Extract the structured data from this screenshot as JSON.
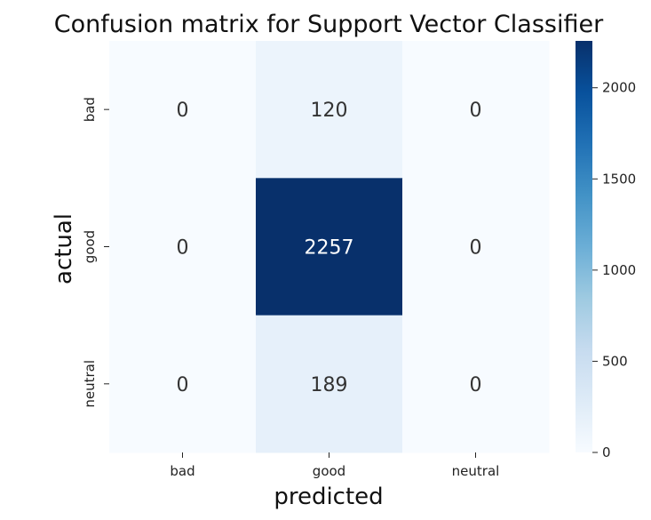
{
  "chart_data": {
    "type": "heatmap",
    "title": "Confusion matrix for Support Vector Classifier",
    "xlabel": "predicted",
    "ylabel": "actual",
    "x_categories": [
      "bad",
      "good",
      "neutral"
    ],
    "y_categories": [
      "bad",
      "good",
      "neutral"
    ],
    "values": [
      [
        0,
        120,
        0
      ],
      [
        0,
        2257,
        0
      ],
      [
        0,
        189,
        0
      ]
    ],
    "colormap": "Blues",
    "colorbar": {
      "range": [
        0,
        2257
      ],
      "ticks": [
        0,
        500,
        1000,
        1500,
        2000
      ]
    },
    "colors": {
      "low": "#f7fbff",
      "high": "#08306b"
    }
  }
}
